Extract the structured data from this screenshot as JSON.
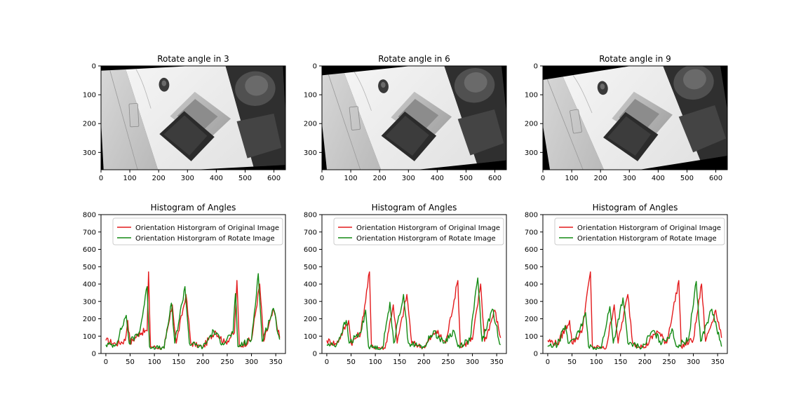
{
  "colors": {
    "original": "#e31a1c",
    "rotated": "#138a13"
  },
  "image_panels": [
    {
      "title": "Rotate angle in 3",
      "rotate_deg": -3,
      "x_ticks": [
        "0",
        "100",
        "200",
        "300",
        "400",
        "500",
        "600"
      ],
      "y_ticks": [
        "0",
        "100",
        "200",
        "300"
      ]
    },
    {
      "title": "Rotate angle in 6",
      "rotate_deg": -6,
      "x_ticks": [
        "0",
        "100",
        "200",
        "300",
        "400",
        "500",
        "600"
      ],
      "y_ticks": [
        "0",
        "100",
        "200",
        "300"
      ]
    },
    {
      "title": "Rotate angle in 9",
      "rotate_deg": -9,
      "x_ticks": [
        "0",
        "100",
        "200",
        "300",
        "400",
        "500",
        "600"
      ],
      "y_ticks": [
        "0",
        "100",
        "200",
        "300"
      ]
    }
  ],
  "chart_data": [
    {
      "type": "line",
      "title": "Histogram of Angles",
      "xlim": [
        -10,
        370
      ],
      "ylim": [
        0,
        800
      ],
      "x_ticks": [
        "0",
        "50",
        "100",
        "150",
        "200",
        "250",
        "300",
        "350"
      ],
      "y_ticks": [
        "0",
        "100",
        "200",
        "300",
        "400",
        "500",
        "600",
        "700",
        "800"
      ],
      "legend": {
        "placement": "top-right",
        "entries": [
          "Orientation Historgram of Original Image",
          "Orientation Historgram of Rotate Image"
        ]
      },
      "series": [
        {
          "name": "Orientation Historgram of Original Image",
          "color": "original",
          "peaks": [
            [
              45,
              190
            ],
            [
              88,
              470
            ],
            [
              137,
              280
            ],
            [
              165,
              340
            ],
            [
              225,
              130
            ],
            [
              270,
              420
            ],
            [
              317,
              400
            ],
            [
              346,
              250
            ]
          ],
          "points": [
            [
              0,
              75
            ],
            [
              20,
              55
            ],
            [
              40,
              75
            ],
            [
              45,
              190
            ],
            [
              50,
              60
            ],
            [
              70,
              120
            ],
            [
              85,
              130
            ],
            [
              88,
              470
            ],
            [
              92,
              40
            ],
            [
              120,
              30
            ],
            [
              137,
              280
            ],
            [
              145,
              60
            ],
            [
              165,
              340
            ],
            [
              175,
              60
            ],
            [
              200,
              35
            ],
            [
              225,
              130
            ],
            [
              245,
              60
            ],
            [
              265,
              120
            ],
            [
              270,
              420
            ],
            [
              275,
              40
            ],
            [
              300,
              80
            ],
            [
              317,
              400
            ],
            [
              325,
              70
            ],
            [
              346,
              250
            ],
            [
              358,
              90
            ]
          ]
        },
        {
          "name": "Orientation Historgram of Rotate Image",
          "color": "rotated",
          "peaks": [
            [
              42,
              220
            ],
            [
              85,
              385
            ],
            [
              135,
              290
            ],
            [
              163,
              385
            ],
            [
              222,
              130
            ],
            [
              267,
              345
            ],
            [
              314,
              460
            ],
            [
              345,
              260
            ]
          ],
          "points": [
            [
              0,
              50
            ],
            [
              20,
              50
            ],
            [
              42,
              220
            ],
            [
              48,
              60
            ],
            [
              70,
              130
            ],
            [
              85,
              385
            ],
            [
              90,
              40
            ],
            [
              120,
              30
            ],
            [
              135,
              290
            ],
            [
              142,
              60
            ],
            [
              163,
              385
            ],
            [
              172,
              60
            ],
            [
              200,
              35
            ],
            [
              222,
              130
            ],
            [
              240,
              60
            ],
            [
              262,
              120
            ],
            [
              267,
              345
            ],
            [
              272,
              40
            ],
            [
              300,
              80
            ],
            [
              314,
              460
            ],
            [
              322,
              70
            ],
            [
              345,
              260
            ],
            [
              358,
              80
            ]
          ]
        }
      ]
    },
    {
      "type": "line",
      "title": "Histogram of Angles",
      "xlim": [
        -10,
        370
      ],
      "ylim": [
        0,
        800
      ],
      "x_ticks": [
        "0",
        "50",
        "100",
        "150",
        "200",
        "250",
        "300",
        "350"
      ],
      "y_ticks": [
        "0",
        "100",
        "200",
        "300",
        "400",
        "500",
        "600",
        "700",
        "800"
      ],
      "legend": {
        "placement": "top-right",
        "entries": [
          "Orientation Historgram of Original Image",
          "Orientation Historgram of Rotate Image"
        ]
      },
      "series": [
        {
          "name": "Orientation Historgram of Original Image",
          "color": "original",
          "peaks": [
            [
              45,
              190
            ],
            [
              88,
              470
            ],
            [
              137,
              280
            ],
            [
              165,
              340
            ],
            [
              225,
              130
            ],
            [
              270,
              420
            ],
            [
              317,
              400
            ],
            [
              346,
              250
            ]
          ],
          "points": [
            [
              0,
              75
            ],
            [
              20,
              55
            ],
            [
              45,
              190
            ],
            [
              50,
              60
            ],
            [
              70,
              120
            ],
            [
              88,
              470
            ],
            [
              92,
              40
            ],
            [
              120,
              30
            ],
            [
              137,
              280
            ],
            [
              145,
              60
            ],
            [
              165,
              340
            ],
            [
              175,
              60
            ],
            [
              200,
              35
            ],
            [
              225,
              130
            ],
            [
              245,
              60
            ],
            [
              270,
              420
            ],
            [
              275,
              40
            ],
            [
              300,
              80
            ],
            [
              317,
              400
            ],
            [
              325,
              70
            ],
            [
              346,
              250
            ],
            [
              358,
              90
            ]
          ]
        },
        {
          "name": "Orientation Historgram of Rotate Image",
          "color": "rotated",
          "peaks": [
            [
              40,
              190
            ],
            [
              80,
              250
            ],
            [
              130,
              295
            ],
            [
              158,
              340
            ],
            [
              220,
              130
            ],
            [
              262,
              130
            ],
            [
              311,
              435
            ],
            [
              341,
              255
            ]
          ],
          "points": [
            [
              0,
              50
            ],
            [
              20,
              50
            ],
            [
              40,
              190
            ],
            [
              46,
              60
            ],
            [
              70,
              120
            ],
            [
              80,
              250
            ],
            [
              86,
              40
            ],
            [
              115,
              30
            ],
            [
              130,
              295
            ],
            [
              138,
              60
            ],
            [
              158,
              340
            ],
            [
              168,
              60
            ],
            [
              200,
              35
            ],
            [
              220,
              130
            ],
            [
              240,
              60
            ],
            [
              262,
              130
            ],
            [
              270,
              40
            ],
            [
              295,
              80
            ],
            [
              311,
              435
            ],
            [
              320,
              70
            ],
            [
              341,
              255
            ],
            [
              358,
              50
            ]
          ]
        }
      ]
    },
    {
      "type": "line",
      "title": "Histogram of Angles",
      "xlim": [
        -10,
        370
      ],
      "ylim": [
        0,
        800
      ],
      "x_ticks": [
        "0",
        "50",
        "100",
        "150",
        "200",
        "250",
        "300",
        "350"
      ],
      "y_ticks": [
        "0",
        "100",
        "200",
        "300",
        "400",
        "500",
        "600",
        "700",
        "800"
      ],
      "legend": {
        "placement": "top-right",
        "entries": [
          "Orientation Historgram of Original Image",
          "Orientation Historgram of Rotate Image"
        ]
      },
      "series": [
        {
          "name": "Orientation Historgram of Original Image",
          "color": "original",
          "peaks": [
            [
              45,
              190
            ],
            [
              88,
              470
            ],
            [
              137,
              280
            ],
            [
              165,
              340
            ],
            [
              225,
              130
            ],
            [
              270,
              420
            ],
            [
              317,
              400
            ],
            [
              346,
              250
            ]
          ],
          "points": [
            [
              0,
              75
            ],
            [
              20,
              55
            ],
            [
              45,
              190
            ],
            [
              50,
              60
            ],
            [
              70,
              120
            ],
            [
              88,
              470
            ],
            [
              92,
              40
            ],
            [
              120,
              30
            ],
            [
              137,
              280
            ],
            [
              145,
              60
            ],
            [
              165,
              340
            ],
            [
              175,
              60
            ],
            [
              200,
              35
            ],
            [
              225,
              130
            ],
            [
              245,
              60
            ],
            [
              270,
              420
            ],
            [
              275,
              40
            ],
            [
              300,
              80
            ],
            [
              317,
              400
            ],
            [
              325,
              70
            ],
            [
              346,
              250
            ],
            [
              358,
              90
            ]
          ]
        },
        {
          "name": "Orientation Historgram of Rotate Image",
          "color": "rotated",
          "peaks": [
            [
              36,
              160
            ],
            [
              78,
              235
            ],
            [
              128,
              270
            ],
            [
              155,
              320
            ],
            [
              216,
              130
            ],
            [
              258,
              130
            ],
            [
              306,
              415
            ],
            [
              338,
              255
            ]
          ],
          "points": [
            [
              0,
              40
            ],
            [
              20,
              50
            ],
            [
              36,
              160
            ],
            [
              42,
              60
            ],
            [
              65,
              120
            ],
            [
              78,
              235
            ],
            [
              84,
              40
            ],
            [
              110,
              30
            ],
            [
              128,
              270
            ],
            [
              135,
              60
            ],
            [
              155,
              320
            ],
            [
              165,
              60
            ],
            [
              195,
              35
            ],
            [
              216,
              130
            ],
            [
              235,
              60
            ],
            [
              258,
              130
            ],
            [
              265,
              40
            ],
            [
              290,
              80
            ],
            [
              306,
              415
            ],
            [
              315,
              70
            ],
            [
              338,
              255
            ],
            [
              358,
              40
            ]
          ]
        }
      ]
    }
  ]
}
